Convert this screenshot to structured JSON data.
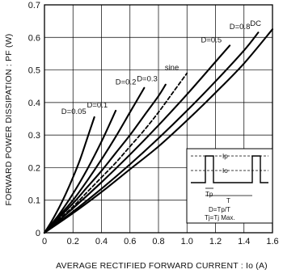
{
  "chart_data": {
    "type": "line",
    "xlabel": "AVERAGE RECTIFIED FORWARD CURRENT : Io (A)",
    "ylabel": "FORWARD POWER DISSIPATION : PF (W)",
    "xlim": [
      0,
      1.6
    ],
    "ylim": [
      0,
      0.7
    ],
    "x_ticks": [
      "0",
      "0.2",
      "0.4",
      "0.6",
      "0.8",
      "1.0",
      "1.2",
      "1.4",
      "1.6"
    ],
    "y_ticks": [
      "0",
      "0.1",
      "0.2",
      "0.3",
      "0.4",
      "0.5",
      "0.6",
      "0.7"
    ],
    "grid": true,
    "series": [
      {
        "name": "D=0.05",
        "style": "solid",
        "x": [
          0,
          0.05,
          0.1,
          0.15,
          0.2,
          0.25,
          0.3,
          0.35
        ],
        "y": [
          0,
          0.035,
          0.075,
          0.12,
          0.17,
          0.225,
          0.29,
          0.355
        ]
      },
      {
        "name": "D=0.1",
        "style": "solid",
        "x": [
          0,
          0.1,
          0.2,
          0.3,
          0.4,
          0.5
        ],
        "y": [
          0,
          0.055,
          0.12,
          0.195,
          0.28,
          0.375
        ]
      },
      {
        "name": "D=0.2",
        "style": "solid",
        "x": [
          0,
          0.1,
          0.2,
          0.3,
          0.4,
          0.5,
          0.6,
          0.7
        ],
        "y": [
          0,
          0.05,
          0.1,
          0.16,
          0.225,
          0.295,
          0.37,
          0.445
        ]
      },
      {
        "name": "D=0.3",
        "style": "solid",
        "x": [
          0,
          0.1,
          0.2,
          0.3,
          0.4,
          0.5,
          0.6,
          0.7,
          0.8,
          0.85
        ],
        "y": [
          0,
          0.045,
          0.09,
          0.14,
          0.19,
          0.245,
          0.3,
          0.36,
          0.42,
          0.455
        ]
      },
      {
        "name": "sine",
        "style": "dashed",
        "x": [
          0,
          0.1,
          0.2,
          0.3,
          0.4,
          0.5,
          0.6,
          0.7,
          0.8,
          0.9,
          1.0
        ],
        "y": [
          0,
          0.04,
          0.08,
          0.125,
          0.17,
          0.215,
          0.265,
          0.315,
          0.37,
          0.43,
          0.49
        ]
      },
      {
        "name": "D=0.5",
        "style": "solid",
        "x": [
          0,
          0.2,
          0.4,
          0.6,
          0.8,
          1.0,
          1.2,
          1.3
        ],
        "y": [
          0,
          0.075,
          0.155,
          0.24,
          0.33,
          0.425,
          0.525,
          0.575
        ]
      },
      {
        "name": "D=0.8",
        "style": "solid",
        "x": [
          0,
          0.2,
          0.4,
          0.6,
          0.8,
          1.0,
          1.2,
          1.4,
          1.5
        ],
        "y": [
          0,
          0.065,
          0.135,
          0.21,
          0.29,
          0.375,
          0.465,
          0.56,
          0.615
        ]
      },
      {
        "name": "DC",
        "style": "solid",
        "x": [
          0,
          0.2,
          0.4,
          0.6,
          0.8,
          1.0,
          1.2,
          1.4,
          1.6
        ],
        "y": [
          0,
          0.06,
          0.125,
          0.195,
          0.265,
          0.345,
          0.43,
          0.52,
          0.625
        ]
      }
    ],
    "inset": {
      "label_ip": "Ip",
      "label_io": "Io",
      "label_tp": "Tp",
      "label_t": "T",
      "note1": "D=Tp/T",
      "note2": "Tj=Tj Max."
    }
  }
}
